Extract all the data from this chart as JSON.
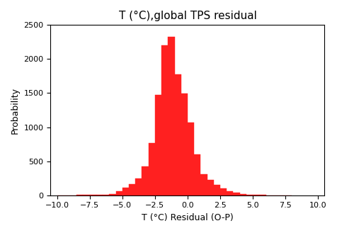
{
  "title": "T (°C),global TPS residual",
  "xlabel": "T (°C) Residual (O-P)",
  "ylabel": "Probability",
  "bar_color": "#ff2020",
  "bar_edge_color": "#ff2020",
  "xlim": [
    -10.5,
    10.5
  ],
  "ylim": [
    0,
    2500
  ],
  "xticks": [
    -10.0,
    -7.5,
    -5.0,
    -2.5,
    0.0,
    2.5,
    5.0,
    7.5,
    10.0
  ],
  "yticks": [
    0,
    500,
    1000,
    1500,
    2000,
    2500
  ],
  "bin_edges": [
    -10.0,
    -9.5,
    -9.0,
    -8.5,
    -8.0,
    -7.5,
    -7.0,
    -6.5,
    -6.0,
    -5.5,
    -5.0,
    -4.5,
    -4.0,
    -3.5,
    -3.0,
    -2.5,
    -2.0,
    -1.5,
    -1.0,
    -0.5,
    0.0,
    0.5,
    1.0,
    1.5,
    2.0,
    2.5,
    3.0,
    3.5,
    4.0,
    4.5,
    5.0,
    5.5,
    6.0,
    6.5,
    7.0,
    7.5,
    8.0
  ],
  "counts": [
    2,
    2,
    2,
    3,
    4,
    5,
    8,
    12,
    20,
    60,
    110,
    160,
    250,
    420,
    770,
    1470,
    2200,
    2330,
    1780,
    1490,
    1070,
    600,
    310,
    230,
    150,
    100,
    60,
    35,
    20,
    10,
    5,
    3,
    2,
    2,
    2,
    1
  ],
  "figsize": [
    4.77,
    3.29
  ],
  "dpi": 100,
  "title_fontsize": 11,
  "axis_label_fontsize": 9,
  "tick_fontsize": 8
}
